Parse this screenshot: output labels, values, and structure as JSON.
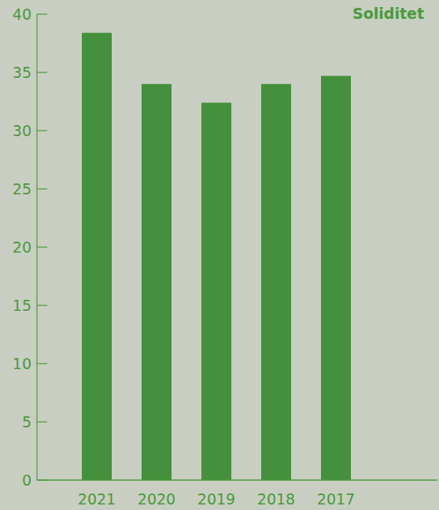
{
  "chart_data": {
    "type": "bar",
    "title": "Soliditet",
    "categories": [
      "2021",
      "2020",
      "2019",
      "2018",
      "2017"
    ],
    "values": [
      38.4,
      34.0,
      32.4,
      34.0,
      34.7
    ],
    "color": "#44903c",
    "ylim": [
      0,
      40
    ],
    "yticks": [
      0,
      5,
      10,
      15,
      20,
      25,
      30,
      35,
      40
    ],
    "grid": false
  }
}
